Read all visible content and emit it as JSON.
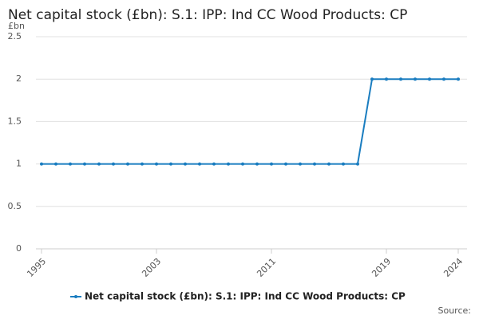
{
  "chart_data": {
    "type": "line",
    "title": "Net capital stock (£bn): S.1: IPP: Ind CC Wood Products: CP",
    "y_unit_label": "£bn",
    "source": "Source:",
    "x": [
      1995,
      1996,
      1997,
      1998,
      1999,
      2000,
      2001,
      2002,
      2003,
      2004,
      2005,
      2006,
      2007,
      2008,
      2009,
      2010,
      2011,
      2012,
      2013,
      2014,
      2015,
      2016,
      2017,
      2018,
      2019,
      2020,
      2021,
      2022,
      2023,
      2024
    ],
    "series": [
      {
        "name": "Net capital stock (£bn): S.1: IPP: Ind CC Wood Products: CP",
        "color": "#1a7dc0",
        "values": [
          1,
          1,
          1,
          1,
          1,
          1,
          1,
          1,
          1,
          1,
          1,
          1,
          1,
          1,
          1,
          1,
          1,
          1,
          1,
          1,
          1,
          1,
          1,
          2,
          2,
          2,
          2,
          2,
          2,
          2
        ]
      }
    ],
    "xlim": [
      1995,
      2024
    ],
    "xticks": [
      1995,
      2003,
      2011,
      2019,
      2024
    ],
    "ylim": [
      0,
      2.5
    ],
    "yticks": [
      0,
      0.5,
      1,
      1.5,
      2,
      2.5
    ],
    "grid": true,
    "legend": "bottom"
  }
}
